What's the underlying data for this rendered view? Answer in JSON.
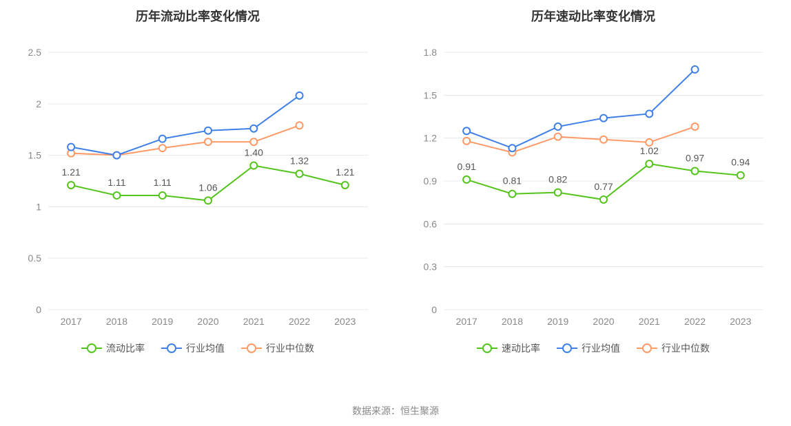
{
  "footer_text": "数据来源：恒生聚源",
  "footer_fontsize": 14,
  "footer_color": "#888888",
  "background_color": "#ffffff",
  "charts": [
    {
      "key": "current_ratio",
      "title": "历年流动比率变化情况",
      "title_fontsize": 18,
      "title_color": "#333333",
      "type": "line",
      "categories": [
        "2017",
        "2018",
        "2019",
        "2020",
        "2021",
        "2022",
        "2023"
      ],
      "ylim": [
        0,
        2.5
      ],
      "ytick_step": 0.5,
      "yticks": [
        0,
        0.5,
        1,
        1.5,
        2,
        2.5
      ],
      "grid_color": "#e8e8e8",
      "axis_label_color": "#888888",
      "axis_label_fontsize": 14,
      "value_label_fontsize": 14,
      "value_label_color": "#555555",
      "marker_radius": 5,
      "line_width": 2,
      "series": [
        {
          "name": "流动比率",
          "color": "#52c41a",
          "values": [
            1.21,
            1.11,
            1.11,
            1.06,
            1.4,
            1.32,
            1.21
          ],
          "show_value_labels": true,
          "label_offset": -14
        },
        {
          "name": "行业均值",
          "color": "#3e7fe8",
          "values": [
            1.58,
            1.5,
            1.66,
            1.74,
            1.76,
            2.08,
            null
          ],
          "show_value_labels": false
        },
        {
          "name": "行业中位数",
          "color": "#ff9966",
          "values": [
            1.52,
            1.5,
            1.57,
            1.63,
            1.63,
            1.79,
            null
          ],
          "show_value_labels": false
        }
      ],
      "legend_fontsize": 14
    },
    {
      "key": "quick_ratio",
      "title": "历年速动比率变化情况",
      "title_fontsize": 18,
      "title_color": "#333333",
      "type": "line",
      "categories": [
        "2017",
        "2018",
        "2019",
        "2020",
        "2021",
        "2022",
        "2023"
      ],
      "ylim": [
        0,
        1.8
      ],
      "ytick_step": 0.3,
      "yticks": [
        0,
        0.3,
        0.6,
        0.9,
        1.2,
        1.5,
        1.8
      ],
      "grid_color": "#e8e8e8",
      "axis_label_color": "#888888",
      "axis_label_fontsize": 14,
      "value_label_fontsize": 14,
      "value_label_color": "#555555",
      "marker_radius": 5,
      "line_width": 2,
      "series": [
        {
          "name": "速动比率",
          "color": "#52c41a",
          "values": [
            0.91,
            0.81,
            0.82,
            0.77,
            1.02,
            0.97,
            0.94
          ],
          "show_value_labels": true,
          "label_offset": -14
        },
        {
          "name": "行业均值",
          "color": "#3e7fe8",
          "values": [
            1.25,
            1.13,
            1.28,
            1.34,
            1.37,
            1.68,
            null
          ],
          "show_value_labels": false
        },
        {
          "name": "行业中位数",
          "color": "#ff9966",
          "values": [
            1.18,
            1.1,
            1.21,
            1.19,
            1.17,
            1.28,
            null
          ],
          "show_value_labels": false
        }
      ],
      "legend_fontsize": 14
    }
  ]
}
